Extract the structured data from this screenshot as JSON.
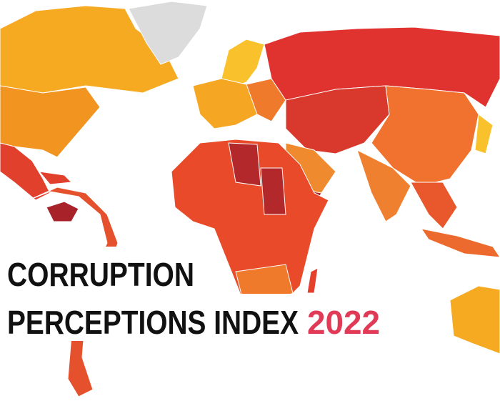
{
  "title": {
    "line1": "CORRUPTION",
    "line2": "PERCEPTIONS INDEX",
    "year": "2022"
  }
}
